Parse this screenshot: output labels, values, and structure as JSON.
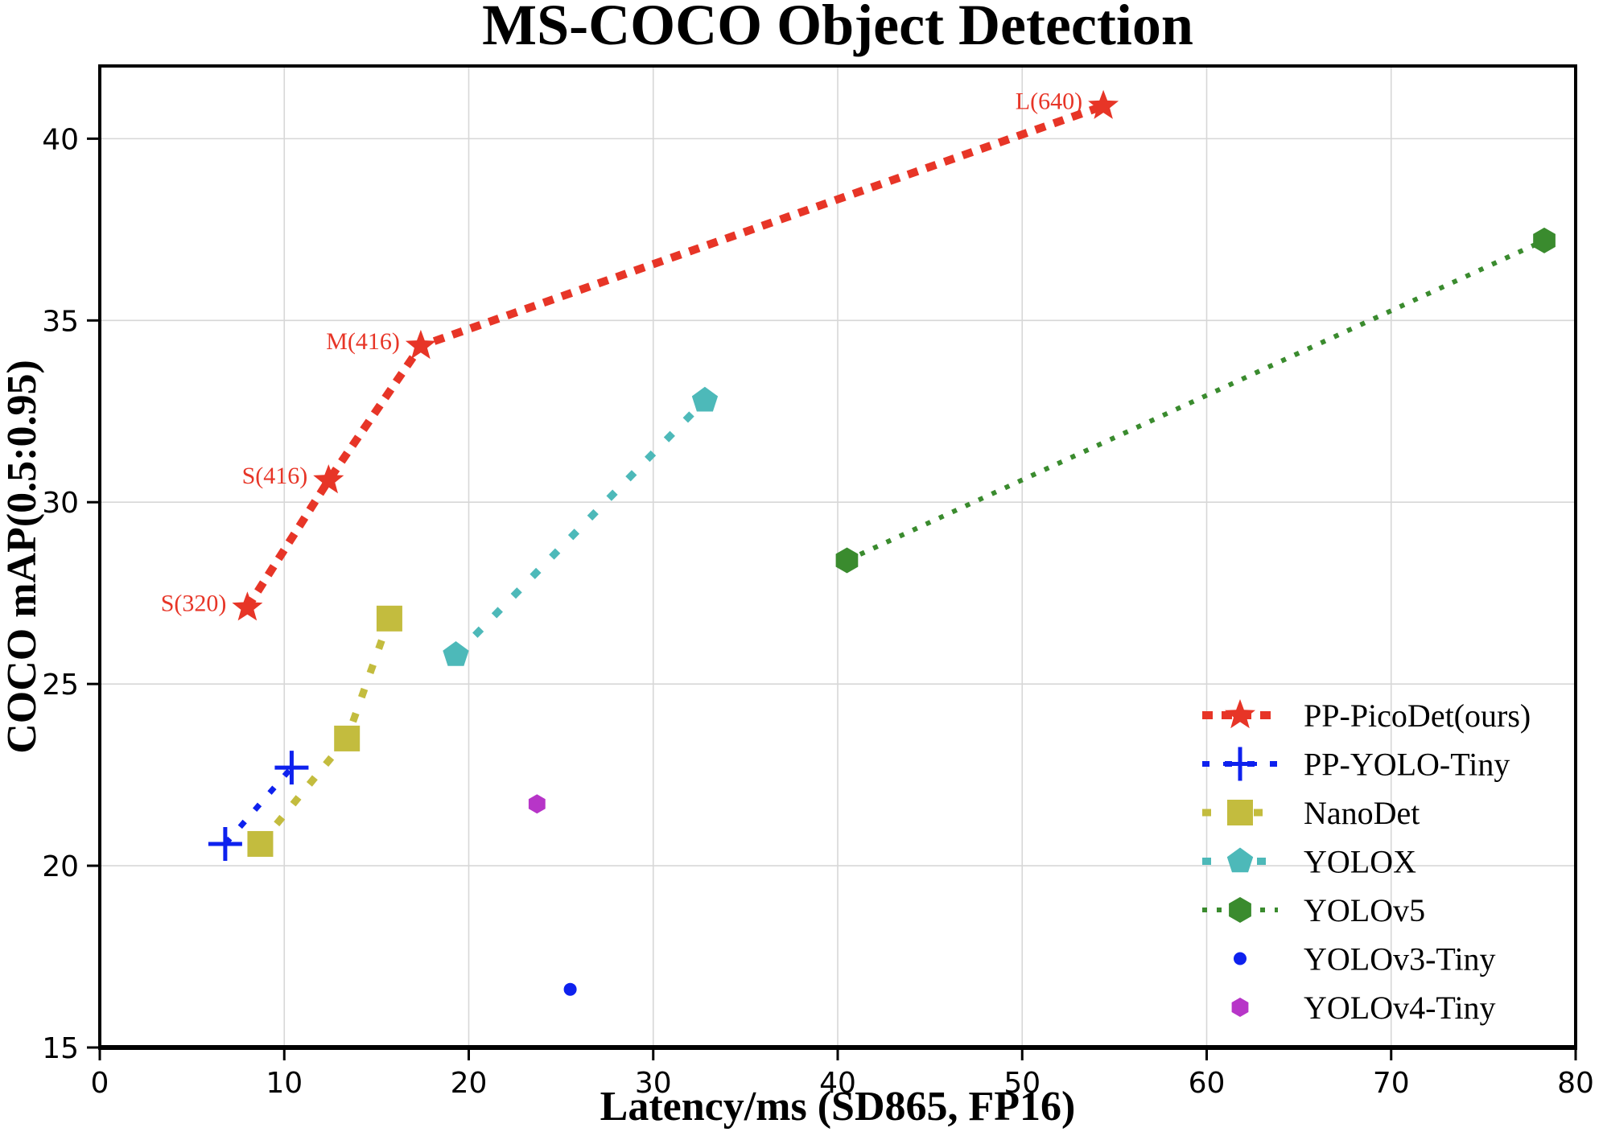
{
  "chart_data": {
    "type": "scatter",
    "title": "MS-COCO Object Detection",
    "xlabel": "Latency/ms (SD865, FP16)",
    "ylabel": "COCO mAP(0.5:0.95)",
    "xlim": [
      0,
      80
    ],
    "ylim": [
      15,
      42
    ],
    "xticks": [
      0,
      10,
      20,
      30,
      40,
      50,
      60,
      70,
      80
    ],
    "yticks": [
      15,
      20,
      25,
      30,
      35,
      40
    ],
    "grid": true,
    "grid_color": "#d7d7d7",
    "legend_position": "lower right",
    "annotation_font_color": "#e73527",
    "series": [
      {
        "name": "PP-PicoDet(ours)",
        "color": "#e73527",
        "marker": "star",
        "marker_size": 20,
        "line_style": "dashed",
        "line_width": 10,
        "dash": [
          13,
          11
        ],
        "points": [
          {
            "x": 8.0,
            "y": 27.1,
            "label": "S(320)"
          },
          {
            "x": 12.4,
            "y": 30.6,
            "label": "S(416)"
          },
          {
            "x": 17.4,
            "y": 34.3,
            "label": "M(416)"
          },
          {
            "x": 54.4,
            "y": 40.9,
            "label": "L(640)"
          }
        ]
      },
      {
        "name": "PP-YOLO-Tiny",
        "color": "#0e21ee",
        "marker": "plus",
        "marker_size": 21,
        "line_style": "dashed",
        "line_width": 7,
        "dash": [
          9,
          19
        ],
        "points": [
          {
            "x": 6.8,
            "y": 20.6
          },
          {
            "x": 10.4,
            "y": 22.7
          }
        ]
      },
      {
        "name": "NanoDet",
        "color": "#c3bc3e",
        "marker": "square",
        "marker_size": 16,
        "line_style": "dashed",
        "line_width": 9,
        "dash": [
          11,
          21
        ],
        "points": [
          {
            "x": 8.7,
            "y": 20.6
          },
          {
            "x": 13.4,
            "y": 23.5
          },
          {
            "x": 15.7,
            "y": 26.8
          }
        ]
      },
      {
        "name": "YOLOX",
        "color": "#4db9b9",
        "marker": "pentagon",
        "marker_size": 17,
        "line_style": "dashed",
        "line_width": 9,
        "dash": [
          11,
          23
        ],
        "points": [
          {
            "x": 19.3,
            "y": 25.8
          },
          {
            "x": 32.8,
            "y": 32.8
          }
        ]
      },
      {
        "name": "YOLOv5",
        "color": "#3a8b2e",
        "marker": "hexagon",
        "marker_size": 16,
        "line_style": "dotted",
        "line_width": 6,
        "dash": [
          6,
          12
        ],
        "points": [
          {
            "x": 40.5,
            "y": 28.4
          },
          {
            "x": 78.3,
            "y": 37.2
          }
        ]
      },
      {
        "name": "YOLOv3-Tiny",
        "color": "#0e21ee",
        "marker": "circle",
        "marker_size": 8,
        "line_style": "none",
        "line_width": 0,
        "dash": [],
        "points": [
          {
            "x": 25.5,
            "y": 16.6
          }
        ]
      },
      {
        "name": "YOLOv4-Tiny",
        "color": "#b735c8",
        "marker": "hexagon",
        "marker_size": 12,
        "line_style": "none",
        "line_width": 0,
        "dash": [],
        "points": [
          {
            "x": 23.7,
            "y": 21.7
          }
        ]
      }
    ]
  }
}
